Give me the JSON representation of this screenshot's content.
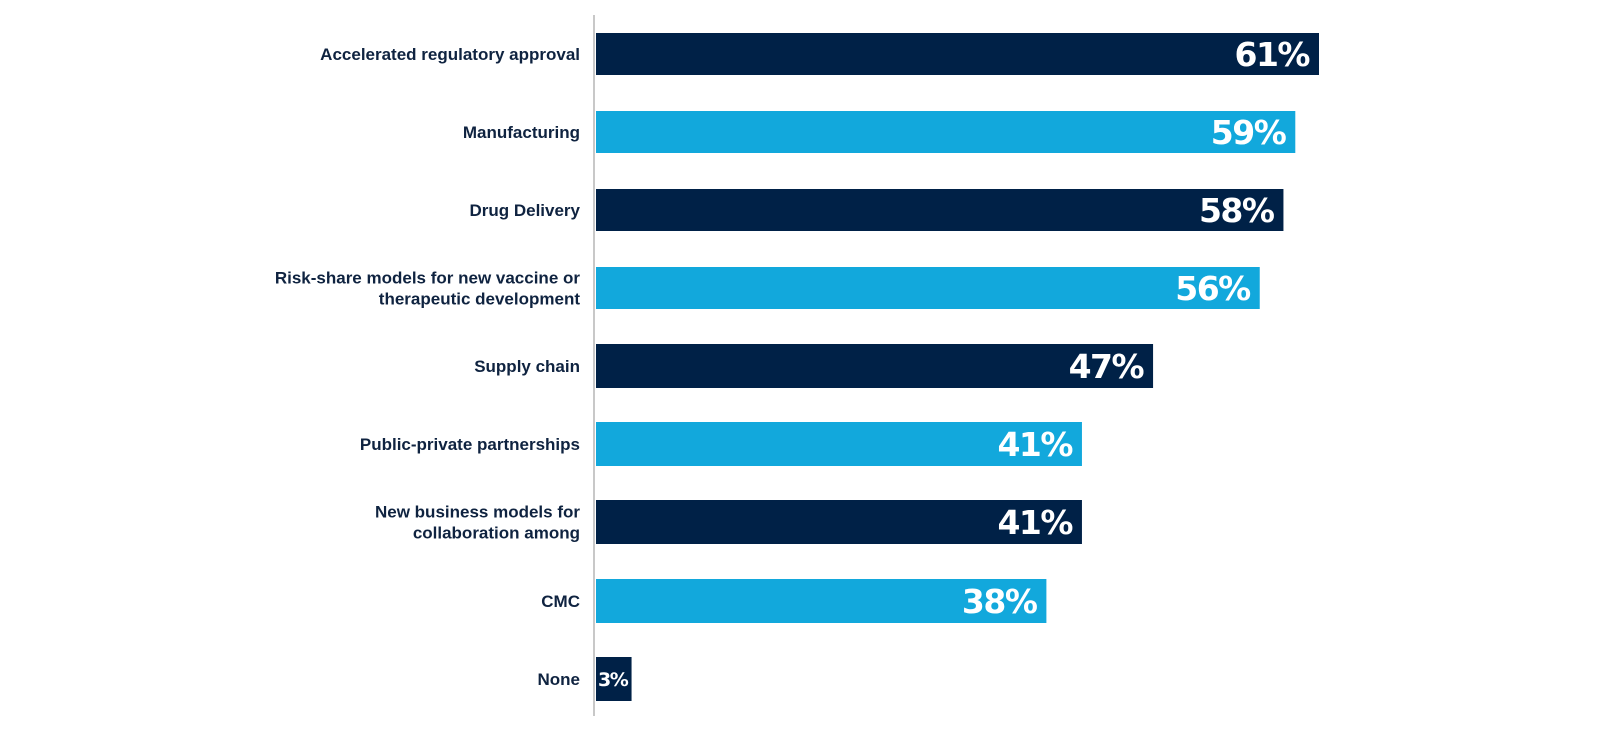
{
  "chart_data": {
    "type": "bar",
    "orientation": "horizontal",
    "categories": [
      [
        "Accelerated regulatory approval"
      ],
      [
        "Manufacturing"
      ],
      [
        "Drug Delivery"
      ],
      [
        "Risk-share models for new vaccine or",
        "therapeutic development"
      ],
      [
        "Supply chain"
      ],
      [
        "Public-private partnerships"
      ],
      [
        "New business models for",
        "collaboration among"
      ],
      [
        "CMC"
      ],
      [
        "None"
      ]
    ],
    "values": [
      61,
      59,
      58,
      56,
      47,
      41,
      41,
      38,
      3
    ],
    "value_labels": [
      "61%",
      "59%",
      "58%",
      "56%",
      "47%",
      "41%",
      "41%",
      "38%",
      "3%"
    ],
    "xlim": [
      0,
      100
    ],
    "grid": false,
    "legend": "none",
    "colors": {
      "bar_dark": "#002147",
      "bar_light": "#12a8dc",
      "label_text": "#0f2340",
      "axis_line": "#c8c8c8"
    }
  }
}
